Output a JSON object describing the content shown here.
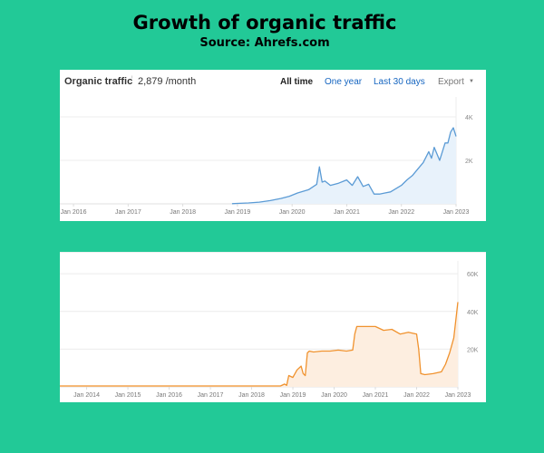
{
  "title": "Growth of organic traffic",
  "subtitle": "Source: Ahrefs.com",
  "chart_data": [
    {
      "type": "area",
      "header": {
        "metric_label": "Organic traffic",
        "metric_value": "2,879 /month",
        "tabs": [
          "All time",
          "One year",
          "Last 30 days"
        ],
        "export_label": "Export"
      },
      "x_ticks": [
        "Jan 2016",
        "Jan 2017",
        "Jan 2018",
        "Jan 2019",
        "Jan 2020",
        "Jan 2021",
        "Jan 2022",
        "Jan 2023"
      ],
      "y_ticks": [
        "2K",
        "4K"
      ],
      "ylim": [
        0,
        4500
      ],
      "xlim": [
        2015.75,
        2023.0
      ],
      "grid": true,
      "color": "#5b9bd5",
      "fill": "#e8f2fb",
      "series": [
        {
          "x": [
            2018.9,
            2019.0,
            2019.2,
            2019.4,
            2019.6,
            2019.8,
            2019.95,
            2020.1,
            2020.3,
            2020.45,
            2020.5,
            2020.55,
            2020.6,
            2020.7,
            2020.85,
            2021.0,
            2021.1,
            2021.2,
            2021.3,
            2021.4,
            2021.5,
            2021.6,
            2021.7,
            2021.8,
            2021.9,
            2022.0,
            2022.1,
            2022.2,
            2022.3,
            2022.4,
            2022.5,
            2022.55,
            2022.6,
            2022.7,
            2022.75,
            2022.8,
            2022.85,
            2022.9,
            2022.95,
            2023.0
          ],
          "values": [
            10,
            20,
            40,
            80,
            150,
            250,
            350,
            500,
            650,
            900,
            1700,
            1000,
            1050,
            850,
            950,
            1100,
            850,
            1250,
            800,
            900,
            450,
            450,
            500,
            550,
            700,
            850,
            1100,
            1300,
            1600,
            1900,
            2400,
            2100,
            2600,
            2000,
            2400,
            2800,
            2800,
            3300,
            3500,
            3100
          ]
        }
      ]
    },
    {
      "type": "area",
      "x_ticks": [
        "Jan 2014",
        "Jan 2015",
        "Jan 2016",
        "Jan 2017",
        "Jan 2018",
        "Jan 2019",
        "Jan 2020",
        "Jan 2021",
        "Jan 2022",
        "Jan 2023"
      ],
      "y_ticks": [
        "20K",
        "40K",
        "60K"
      ],
      "ylim": [
        0,
        62000
      ],
      "xlim": [
        2013.35,
        2023.0
      ],
      "grid": true,
      "color": "#f0922e",
      "fill": "#fdeee0",
      "series": [
        {
          "x": [
            2013.35,
            2018.7,
            2018.8,
            2018.85,
            2018.9,
            2019.0,
            2019.1,
            2019.2,
            2019.25,
            2019.3,
            2019.35,
            2019.4,
            2019.5,
            2019.7,
            2019.9,
            2020.1,
            2020.3,
            2020.45,
            2020.5,
            2020.55,
            2020.8,
            2021.0,
            2021.2,
            2021.4,
            2021.6,
            2021.8,
            2022.0,
            2022.05,
            2022.1,
            2022.2,
            2022.4,
            2022.6,
            2022.7,
            2022.8,
            2022.9,
            2023.0
          ],
          "values": [
            500,
            500,
            1500,
            800,
            6000,
            5000,
            9000,
            11000,
            7000,
            6000,
            18000,
            19000,
            18500,
            19000,
            19000,
            19500,
            19000,
            19500,
            28000,
            32000,
            32000,
            32000,
            30000,
            30500,
            28000,
            29000,
            28000,
            20000,
            7000,
            6500,
            7000,
            8000,
            12000,
            18000,
            26000,
            45000
          ]
        }
      ]
    }
  ]
}
